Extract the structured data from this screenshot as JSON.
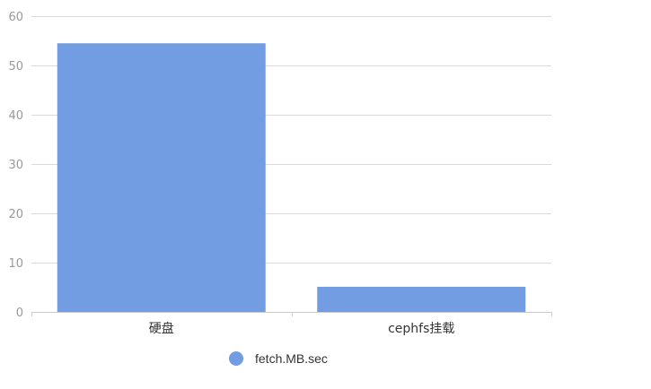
{
  "chart_data": {
    "type": "bar",
    "categories": [
      "硬盘",
      "cephfs挂载"
    ],
    "series": [
      {
        "name": "fetch.MB.sec",
        "values": [
          54.5,
          5.1
        ],
        "color": "#739DE2"
      }
    ],
    "ylim": [
      0,
      60
    ],
    "yticks": [
      0,
      10,
      20,
      30,
      40,
      50,
      60
    ],
    "grid": true,
    "legend_position": "bottom"
  }
}
